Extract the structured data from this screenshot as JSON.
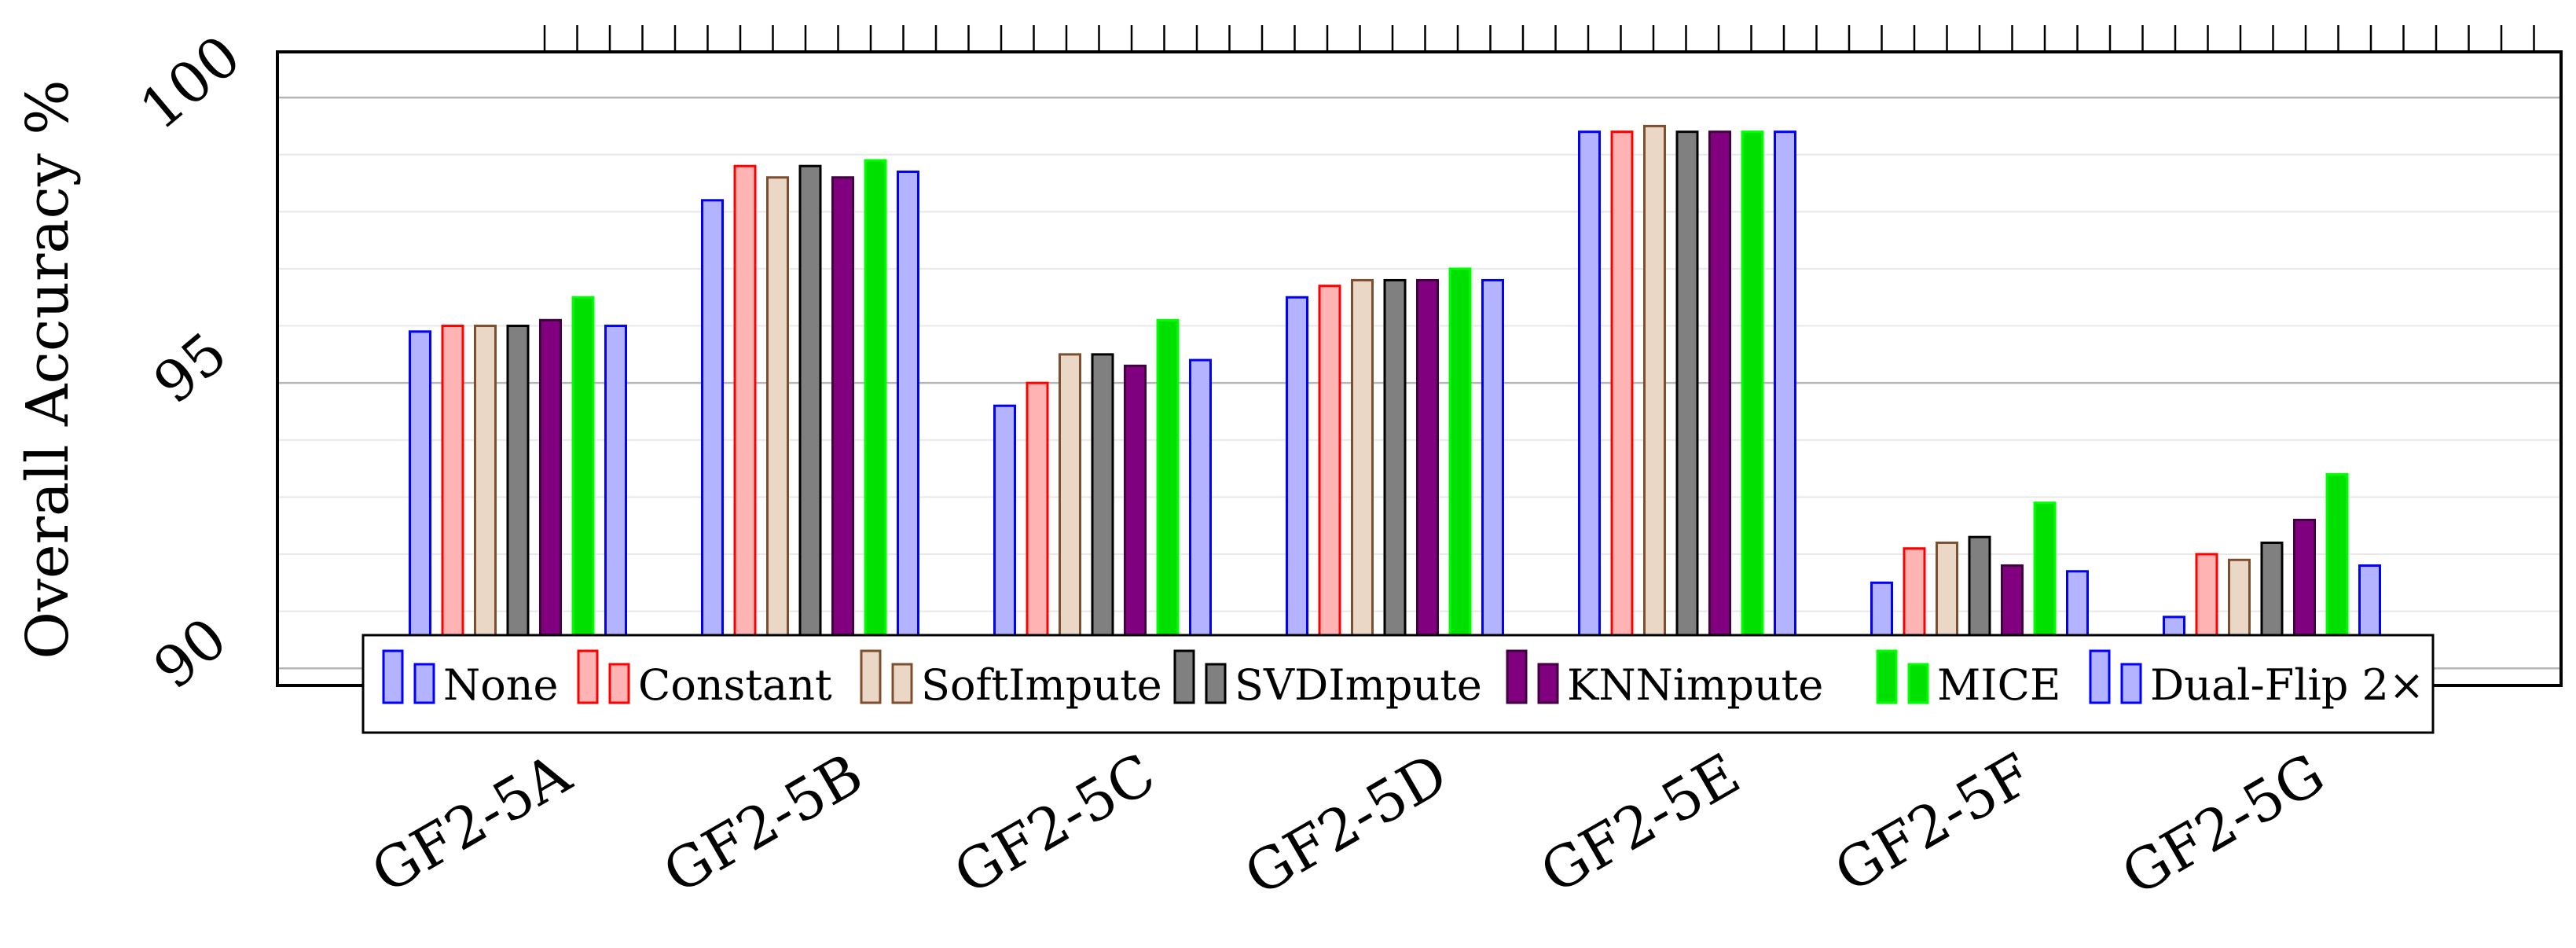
{
  "chart_data": {
    "type": "bar",
    "title": "",
    "xlabel": "",
    "ylabel": "Overall Accuracy %",
    "ylim": [
      89.7,
      100.8
    ],
    "yticks": [
      90,
      95,
      100
    ],
    "grid": true,
    "legend_position": "bottom-inside",
    "categories": [
      "GF2-5A",
      "GF2-5B",
      "GF2-5C",
      "GF2-5D",
      "GF2-5E",
      "GF2-5F",
      "GF2-5G"
    ],
    "series": [
      {
        "name": "None",
        "fill": "#b3b3ff",
        "stroke": "#0000ff",
        "values": [
          95.9,
          98.2,
          94.6,
          96.5,
          99.4,
          91.5,
          90.9
        ]
      },
      {
        "name": "Constant",
        "fill": "#ffb3b3",
        "stroke": "#ff0000",
        "values": [
          96.0,
          98.8,
          95.0,
          96.7,
          99.4,
          92.1,
          92.0
        ]
      },
      {
        "name": "SoftImpute",
        "fill": "#ead7c5",
        "stroke": "#7d4f2e",
        "values": [
          96.0,
          98.6,
          95.5,
          96.8,
          99.5,
          92.2,
          91.9
        ]
      },
      {
        "name": "SVDImpute",
        "fill": "#808080",
        "stroke": "#000000",
        "values": [
          96.0,
          98.8,
          95.5,
          96.8,
          99.4,
          92.3,
          92.2
        ]
      },
      {
        "name": "KNNimpute",
        "fill": "#800080",
        "stroke": "#400040",
        "values": [
          96.1,
          98.6,
          95.3,
          96.8,
          99.4,
          91.8,
          92.6
        ]
      },
      {
        "name": "MICE",
        "fill": "#00e000",
        "stroke": "#00ff00",
        "values": [
          96.5,
          98.9,
          96.1,
          97.0,
          99.4,
          92.9,
          93.4
        ]
      },
      {
        "name": "Dual-Flip 2×",
        "fill": "#b3b3ff",
        "stroke": "#0000ff",
        "values": [
          96.0,
          98.7,
          95.4,
          96.8,
          99.4,
          91.7,
          91.8
        ]
      }
    ]
  }
}
